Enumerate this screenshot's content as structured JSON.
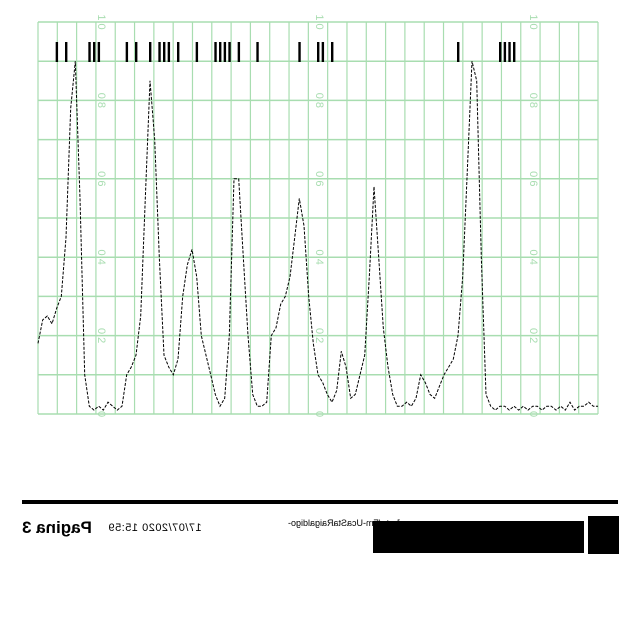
{
  "chart_data": {
    "type": "line",
    "panels": 3,
    "ylim": [
      0,
      1.0
    ],
    "yticks_per_panel": [
      "0",
      "0.2",
      "0.4",
      "0.6",
      "0.8",
      "1.0"
    ],
    "grid": true,
    "colors": {
      "grid": "#a8ddb0",
      "line": "#000000",
      "ticks": "#000000"
    },
    "series": [
      {
        "x": [
          0,
          1,
          2,
          3,
          4,
          5,
          6,
          7,
          8,
          9,
          10,
          11,
          12,
          13,
          14,
          15,
          16,
          17,
          18,
          19,
          20,
          21,
          22,
          23,
          24,
          25,
          26,
          27,
          28,
          29,
          30,
          31,
          32,
          33,
          34,
          35,
          36,
          37,
          38,
          39,
          40,
          41,
          42,
          43,
          44,
          45,
          46,
          47,
          48,
          49,
          50,
          51,
          52,
          53,
          54,
          55,
          56,
          57,
          58,
          59,
          60,
          61,
          62,
          63,
          64,
          65,
          66,
          67,
          68,
          69,
          70,
          71,
          72,
          73,
          74,
          75,
          76,
          77,
          78,
          79,
          80,
          81,
          82,
          83,
          84,
          85,
          86,
          87,
          88,
          89,
          90,
          91,
          92,
          93,
          94,
          95,
          96,
          97,
          98,
          99,
          100,
          101,
          102,
          103,
          104,
          105,
          106,
          107,
          108,
          109,
          110,
          111,
          112,
          113,
          114,
          115,
          116,
          117,
          118,
          119,
          120
        ],
        "y": [
          0.18,
          0.24,
          0.25,
          0.23,
          0.27,
          0.3,
          0.45,
          0.78,
          0.9,
          0.55,
          0.1,
          0.02,
          0.01,
          0.02,
          0.01,
          0.03,
          0.02,
          0.01,
          0.02,
          0.1,
          0.12,
          0.15,
          0.25,
          0.55,
          0.85,
          0.7,
          0.4,
          0.15,
          0.12,
          0.1,
          0.14,
          0.3,
          0.38,
          0.42,
          0.35,
          0.2,
          0.15,
          0.1,
          0.05,
          0.02,
          0.04,
          0.2,
          0.6,
          0.6,
          0.4,
          0.2,
          0.05,
          0.02,
          0.02,
          0.03,
          0.2,
          0.22,
          0.28,
          0.3,
          0.35,
          0.45,
          0.55,
          0.48,
          0.3,
          0.18,
          0.1,
          0.08,
          0.05,
          0.03,
          0.06,
          0.16,
          0.12,
          0.04,
          0.05,
          0.1,
          0.15,
          0.35,
          0.58,
          0.4,
          0.22,
          0.12,
          0.05,
          0.02,
          0.02,
          0.03,
          0.02,
          0.04,
          0.1,
          0.08,
          0.05,
          0.04,
          0.07,
          0.1,
          0.12,
          0.14,
          0.2,
          0.35,
          0.62,
          0.9,
          0.85,
          0.4,
          0.05,
          0.02,
          0.01,
          0.02,
          0.02,
          0.01,
          0.02,
          0.01,
          0.02,
          0.01,
          0.02,
          0.02,
          0.01,
          0.02,
          0.02,
          0.01,
          0.02,
          0.01,
          0.03,
          0.01,
          0.02,
          0.02,
          0.03,
          0.02,
          0.02
        ]
      }
    ],
    "event_ticks": [
      4,
      6,
      11,
      12,
      13,
      19,
      21,
      24,
      26,
      27,
      28,
      30,
      34,
      38,
      39,
      40,
      41,
      43,
      47,
      56,
      60,
      61,
      63,
      90,
      99,
      100,
      101,
      102
    ]
  },
  "footer": {
    "page_text": "Pagina 3",
    "date_text": "17/07/2020 15:59",
    "file_text": "Jerta/Fm-UcaStaRaigaldigo-"
  }
}
